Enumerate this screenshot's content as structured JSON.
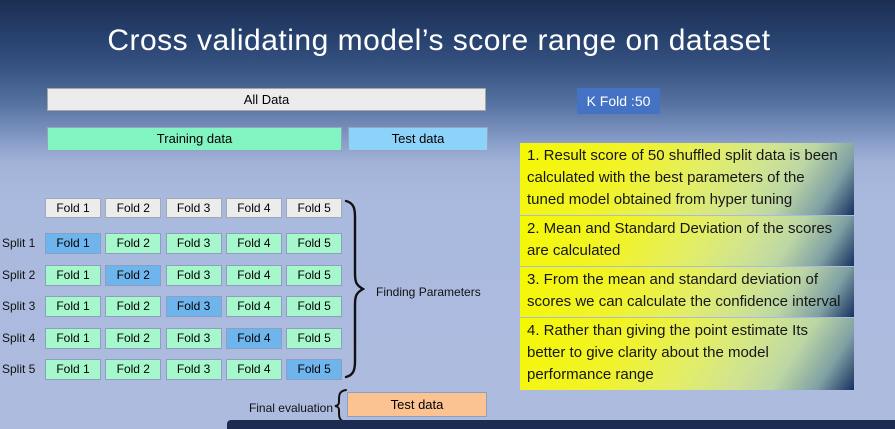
{
  "title": "Cross validating model’s score range on dataset",
  "diagram": {
    "all_data_label": "All Data",
    "training_label": "Training data",
    "test_label": "Test data",
    "header_folds": [
      "Fold 1",
      "Fold 2",
      "Fold 3",
      "Fold 4",
      "Fold 5"
    ],
    "splits": [
      {
        "label": "Split 1",
        "folds": [
          "Fold 1",
          "Fold 2",
          "Fold 3",
          "Fold 4",
          "Fold 5"
        ],
        "highlight": 0
      },
      {
        "label": "Split 2",
        "folds": [
          "Fold 1",
          "Fold 2",
          "Fold 3",
          "Fold 4",
          "Fold 5"
        ],
        "highlight": 1
      },
      {
        "label": "Split 3",
        "folds": [
          "Fold 1",
          "Fold 2",
          "Fold 3",
          "Fold 4",
          "Fold 5"
        ],
        "highlight": 2
      },
      {
        "label": "Split 4",
        "folds": [
          "Fold 1",
          "Fold 2",
          "Fold 3",
          "Fold 4",
          "Fold 5"
        ],
        "highlight": 3
      },
      {
        "label": "Split 5",
        "folds": [
          "Fold 1",
          "Fold 2",
          "Fold 3",
          "Fold 4",
          "Fold 5"
        ],
        "highlight": 4
      }
    ],
    "finding_parameters_label": "Finding Parameters",
    "final_evaluation_label": "Final evaluation",
    "final_test_label": "Test data"
  },
  "kfold": {
    "label": "K Fold :50"
  },
  "notes": [
    "1. Result score of 50 shuffled split data is been calculated with the best parameters of the tuned model obtained from hyper tuning",
    "2. Mean and Standard Deviation of the scores are calculated",
    "3. From the mean and standard deviation of scores we can calculate the confidence interval",
    "4. Rather than giving the point estimate Its better to give clarity about the model performance range"
  ],
  "colors": {
    "background_top": "#1c2e52",
    "background_bottom": "#acbbde",
    "gray_box": "#ececec",
    "training_green": "#82f4c2",
    "fold_green": "#a6f7cb",
    "test_blue": "#8dd3f9",
    "fold_highlight_blue": "#6fb5ed",
    "final_test_orange": "#fbc391",
    "kfold_badge_blue": "#4472c4",
    "note_yellow": "#f5f802",
    "note_corner_navy": "#16305f",
    "title_text": "#ffffff"
  }
}
